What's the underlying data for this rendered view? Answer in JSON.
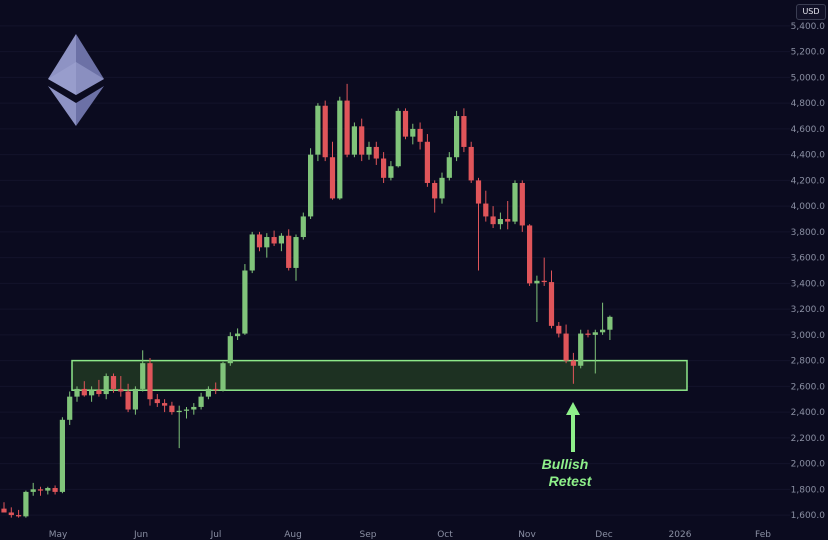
{
  "header": {
    "currency_label": "USD"
  },
  "logo": {
    "icon": "ethereum-logo",
    "color": "#7b80b5"
  },
  "colors": {
    "up": "#80c47a",
    "down": "#e0555a",
    "zone_border": "#8ee88a",
    "zone_fill": "#1f3522",
    "arrow": "#8ef08a",
    "background": "#0b0b1f",
    "grid": "#14142b"
  },
  "chart_data": {
    "type": "candlestick",
    "title": "",
    "xlabel": "",
    "ylabel": "",
    "ylim": [
      1550,
      5450
    ],
    "x_ticks": [
      "May",
      "Jun",
      "Jul",
      "Aug",
      "Sep",
      "Oct",
      "Nov",
      "Dec",
      "2026",
      "Feb"
    ],
    "y_ticks": [
      "1,600.0",
      "1,800.0",
      "2,000.0",
      "2,200.0",
      "2,400.0",
      "2,600.0",
      "2,800.0",
      "3,000.0",
      "3,200.0",
      "3,400.0",
      "3,600.0",
      "3,800.0",
      "4,000.0",
      "4,200.0",
      "4,400.0",
      "4,600.0",
      "4,800.0",
      "5,000.0",
      "5,200.0",
      "5,400.0"
    ],
    "y_tick_values": [
      1600,
      1800,
      2000,
      2200,
      2400,
      2600,
      2800,
      3000,
      3200,
      3400,
      3600,
      3800,
      4000,
      4200,
      4400,
      4600,
      4800,
      5000,
      5200,
      5400
    ],
    "zone": {
      "low": 2570,
      "high": 2800
    },
    "annotation": [
      "Bullish",
      "Retest"
    ],
    "candles": [
      [
        1650,
        1700,
        1620,
        1620
      ],
      [
        1620,
        1660,
        1580,
        1600
      ],
      [
        1600,
        1640,
        1580,
        1590
      ],
      [
        1590,
        1790,
        1580,
        1780
      ],
      [
        1780,
        1850,
        1750,
        1800
      ],
      [
        1800,
        1820,
        1750,
        1790
      ],
      [
        1790,
        1820,
        1760,
        1810
      ],
      [
        1810,
        1830,
        1760,
        1780
      ],
      [
        1780,
        2360,
        1770,
        2340
      ],
      [
        2340,
        2560,
        2300,
        2520
      ],
      [
        2520,
        2600,
        2480,
        2580
      ],
      [
        2580,
        2640,
        2520,
        2530
      ],
      [
        2530,
        2600,
        2480,
        2570
      ],
      [
        2570,
        2650,
        2520,
        2540
      ],
      [
        2540,
        2700,
        2500,
        2680
      ],
      [
        2680,
        2700,
        2550,
        2580
      ],
      [
        2580,
        2680,
        2520,
        2560
      ],
      [
        2560,
        2620,
        2400,
        2420
      ],
      [
        2420,
        2600,
        2380,
        2580
      ],
      [
        2580,
        2880,
        2560,
        2780
      ],
      [
        2780,
        2820,
        2450,
        2500
      ],
      [
        2500,
        2540,
        2440,
        2470
      ],
      [
        2470,
        2500,
        2400,
        2450
      ],
      [
        2450,
        2480,
        2380,
        2400
      ],
      [
        2400,
        2450,
        2120,
        2410
      ],
      [
        2410,
        2440,
        2350,
        2420
      ],
      [
        2420,
        2470,
        2380,
        2440
      ],
      [
        2440,
        2550,
        2420,
        2520
      ],
      [
        2520,
        2600,
        2500,
        2580
      ],
      [
        2580,
        2630,
        2540,
        2570
      ],
      [
        2570,
        2790,
        2560,
        2780
      ],
      [
        2780,
        3020,
        2760,
        2990
      ],
      [
        2990,
        3050,
        2960,
        3010
      ],
      [
        3010,
        3550,
        3000,
        3500
      ],
      [
        3500,
        3800,
        3480,
        3780
      ],
      [
        3780,
        3800,
        3650,
        3680
      ],
      [
        3680,
        3790,
        3600,
        3760
      ],
      [
        3760,
        3810,
        3690,
        3710
      ],
      [
        3710,
        3790,
        3650,
        3770
      ],
      [
        3770,
        3820,
        3500,
        3520
      ],
      [
        3520,
        3780,
        3420,
        3760
      ],
      [
        3760,
        3950,
        3740,
        3920
      ],
      [
        3920,
        4450,
        3900,
        4400
      ],
      [
        4400,
        4800,
        4350,
        4780
      ],
      [
        4780,
        4820,
        4350,
        4380
      ],
      [
        4380,
        4500,
        4050,
        4060
      ],
      [
        4060,
        4850,
        4050,
        4820
      ],
      [
        4820,
        4950,
        4380,
        4400
      ],
      [
        4400,
        4650,
        4380,
        4620
      ],
      [
        4620,
        4680,
        4350,
        4400
      ],
      [
        4400,
        4500,
        4360,
        4460
      ],
      [
        4460,
        4500,
        4320,
        4370
      ],
      [
        4370,
        4420,
        4180,
        4220
      ],
      [
        4220,
        4350,
        4200,
        4310
      ],
      [
        4310,
        4760,
        4300,
        4740
      ],
      [
        4740,
        4760,
        4520,
        4540
      ],
      [
        4540,
        4640,
        4480,
        4600
      ],
      [
        4600,
        4650,
        4440,
        4500
      ],
      [
        4500,
        4560,
        4150,
        4180
      ],
      [
        4180,
        4200,
        3950,
        4060
      ],
      [
        4060,
        4260,
        4020,
        4220
      ],
      [
        4220,
        4420,
        4200,
        4380
      ],
      [
        4380,
        4740,
        4350,
        4700
      ],
      [
        4700,
        4760,
        4420,
        4460
      ],
      [
        4460,
        4500,
        4180,
        4200
      ],
      [
        4200,
        4220,
        3500,
        4020
      ],
      [
        4020,
        4120,
        3880,
        3920
      ],
      [
        3920,
        4000,
        3830,
        3860
      ],
      [
        3860,
        3950,
        3820,
        3900
      ],
      [
        3900,
        4040,
        3820,
        3880
      ],
      [
        3880,
        4200,
        3860,
        4180
      ],
      [
        4180,
        4200,
        3800,
        3850
      ],
      [
        3850,
        3860,
        3380,
        3400
      ],
      [
        3400,
        3460,
        3100,
        3420
      ],
      [
        3420,
        3600,
        3380,
        3410
      ],
      [
        3410,
        3500,
        3050,
        3070
      ],
      [
        3070,
        3100,
        2980,
        3010
      ],
      [
        3010,
        3080,
        2780,
        2800
      ],
      [
        2800,
        2860,
        2620,
        2760
      ],
      [
        2760,
        3040,
        2740,
        3010
      ],
      [
        3010,
        3040,
        2980,
        3000
      ],
      [
        3000,
        3040,
        2700,
        3020
      ],
      [
        3020,
        3250,
        3000,
        3040
      ],
      [
        3040,
        3150,
        2960,
        3140
      ]
    ]
  }
}
